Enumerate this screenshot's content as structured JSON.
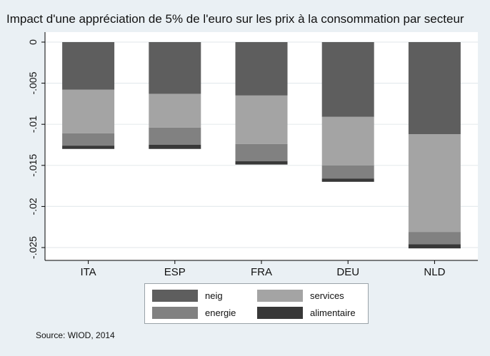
{
  "chart_data": {
    "type": "bar",
    "stacked": true,
    "title": "Impact d'une appréciation de 5% de l'euro sur les prix à la consommation par secteur",
    "categories": [
      "ITA",
      "ESP",
      "FRA",
      "DEU",
      "NLD"
    ],
    "series": [
      {
        "name": "neig",
        "color": "#5e5e5e",
        "values": [
          -0.0058,
          -0.0063,
          -0.0065,
          -0.0091,
          -0.0112
        ]
      },
      {
        "name": "services",
        "color": "#a4a4a4",
        "values": [
          -0.0053,
          -0.0041,
          -0.0059,
          -0.0059,
          -0.0119
        ]
      },
      {
        "name": "energie",
        "color": "#818181",
        "values": [
          -0.0015,
          -0.0021,
          -0.0021,
          -0.0016,
          -0.0015
        ]
      },
      {
        "name": "alimentaire",
        "color": "#383838",
        "values": [
          -0.0004,
          -0.0005,
          -0.0004,
          -0.0004,
          -0.0005
        ]
      }
    ],
    "yticks": [
      0,
      -0.005,
      -0.01,
      -0.015,
      -0.02,
      -0.025
    ],
    "ytick_labels": [
      "0",
      "-.005",
      "-.01",
      "-.015",
      "-.02",
      "-.025"
    ],
    "ylim": [
      -0.0265,
      0
    ],
    "grid": true,
    "legend_position": "bottom"
  },
  "source": "Source: WIOD, 2014"
}
